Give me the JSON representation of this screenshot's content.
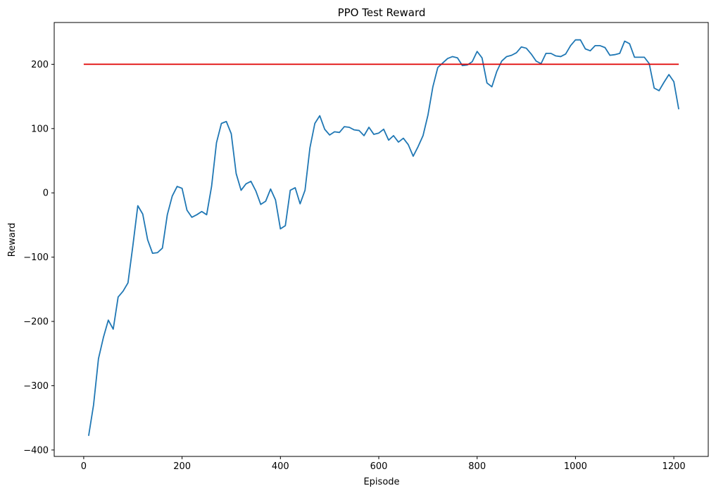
{
  "chart_data": {
    "type": "line",
    "title": "PPO Test Reward",
    "xlabel": "Episode",
    "ylabel": "Reward",
    "xlim": [
      -60,
      1270
    ],
    "ylim": [
      -410,
      265
    ],
    "xticks": [
      0,
      200,
      400,
      600,
      800,
      1000,
      1200
    ],
    "yticks": [
      -400,
      -300,
      -200,
      -100,
      0,
      100,
      200
    ],
    "xtick_labels": [
      "0",
      "200",
      "400",
      "600",
      "800",
      "1000",
      "1200"
    ],
    "ytick_labels": [
      "−400",
      "−300",
      "−200",
      "−100",
      "0",
      "100",
      "200"
    ],
    "grid": false,
    "colors": {
      "series": "#1f77b4",
      "threshold": "#e00000"
    },
    "series": [
      {
        "x": [
          10,
          20,
          30,
          40,
          50,
          60,
          70,
          80,
          90,
          100,
          110,
          120,
          130,
          140,
          150,
          160,
          170,
          180,
          190,
          200,
          210,
          220,
          230,
          240,
          250,
          260,
          270,
          280,
          290,
          300,
          310,
          320,
          330,
          340,
          350,
          360,
          370,
          380,
          390,
          400,
          410,
          420,
          430,
          440,
          450,
          460,
          470,
          480,
          490,
          500,
          510,
          520,
          530,
          540,
          550,
          560,
          570,
          580,
          590,
          600,
          610,
          620,
          630,
          640,
          650,
          660,
          670,
          680,
          690,
          700,
          710,
          720,
          730,
          740,
          750,
          760,
          770,
          780,
          790,
          800,
          810,
          820,
          830,
          840,
          850,
          860,
          870,
          880,
          890,
          900,
          910,
          920,
          930,
          940,
          950,
          960,
          970,
          980,
          990,
          1000,
          1010,
          1020,
          1030,
          1040,
          1050,
          1060,
          1070,
          1080,
          1090,
          1100,
          1110,
          1120,
          1130,
          1140,
          1150,
          1160,
          1170,
          1180,
          1190,
          1200,
          1210
        ],
        "y": [
          -378,
          -330,
          -258,
          -225,
          -198,
          -212,
          -162,
          -153,
          -140,
          -82,
          -20,
          -33,
          -73,
          -94,
          -93,
          -86,
          -34,
          -5,
          10,
          7,
          -27,
          -38,
          -34,
          -29,
          -34,
          10,
          78,
          108,
          111,
          92,
          30,
          4,
          14,
          18,
          3,
          -18,
          -13,
          6,
          -11,
          -56,
          -51,
          4,
          8,
          -17,
          4,
          70,
          108,
          120,
          99,
          90,
          95,
          94,
          103,
          102,
          98,
          97,
          89,
          102,
          91,
          93,
          99,
          82,
          89,
          79,
          85,
          75,
          57,
          72,
          89,
          121,
          165,
          195,
          202,
          209,
          212,
          210,
          198,
          199,
          204,
          220,
          210,
          171,
          165,
          189,
          205,
          212,
          214,
          218,
          227,
          225,
          216,
          205,
          201,
          217,
          217,
          213,
          212,
          216,
          229,
          238,
          238,
          224,
          221,
          229,
          229,
          226,
          214,
          215,
          217,
          236,
          232,
          211,
          211,
          211,
          201,
          163,
          159,
          172,
          184,
          173,
          130
        ]
      },
      {
        "x": [
          0,
          1210
        ],
        "y": [
          200,
          200
        ]
      }
    ]
  }
}
